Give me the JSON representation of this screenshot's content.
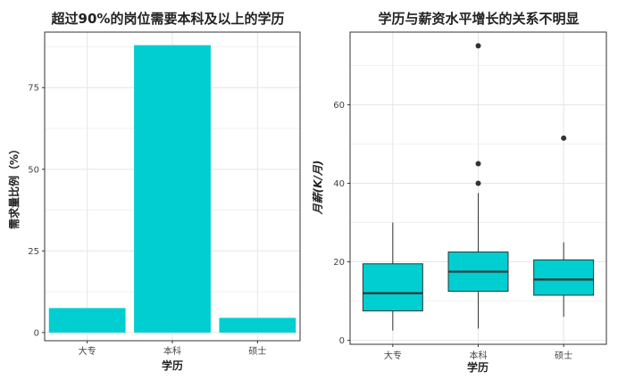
{
  "chart_data": [
    {
      "type": "bar",
      "title": "超过90%的岗位需要本科及以上的学历",
      "xlabel": "学历",
      "ylabel": "需求量比例（%）",
      "categories": [
        "大专",
        "本科",
        "硕士"
      ],
      "values": [
        7.5,
        88,
        4.5
      ],
      "yticks": [
        0,
        25,
        50,
        75
      ],
      "ylim": [
        -2.5,
        92
      ],
      "grid": true,
      "color": "#00CED1"
    },
    {
      "type": "box",
      "title": "学历与薪资水平增长的关系不明显",
      "xlabel": "学历",
      "ylabel": "月薪(K/月)",
      "categories": [
        "大专",
        "本科",
        "硕士"
      ],
      "boxes": [
        {
          "category": "大专",
          "whisker_low": 2.5,
          "q1": 7.5,
          "median": 12,
          "q3": 19.5,
          "whisker_high": 30,
          "outliers": []
        },
        {
          "category": "本科",
          "whisker_low": 3,
          "q1": 12.5,
          "median": 17.5,
          "q3": 22.5,
          "whisker_high": 37.5,
          "outliers": [
            40,
            45,
            75
          ]
        },
        {
          "category": "硕士",
          "whisker_low": 6,
          "q1": 11.5,
          "median": 15.5,
          "q3": 20.5,
          "whisker_high": 25,
          "outliers": [
            51.5
          ]
        }
      ],
      "yticks": [
        0,
        20,
        40,
        60
      ],
      "ylim": [
        -1,
        78.5
      ],
      "grid": true,
      "color": "#00CED1"
    }
  ]
}
